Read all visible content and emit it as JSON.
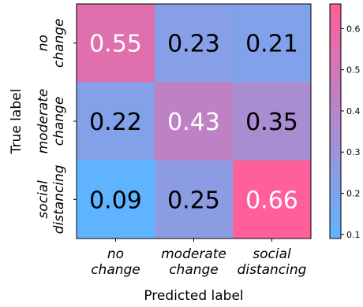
{
  "chart_data": {
    "type": "heatmap",
    "x_categories": [
      "no\nchange",
      "moderate\nchange",
      "social\ndistancing"
    ],
    "y_categories": [
      "no\nchange",
      "moderate\nchange",
      "social\ndistancing"
    ],
    "values": [
      [
        0.55,
        0.23,
        0.21
      ],
      [
        0.22,
        0.43,
        0.35
      ],
      [
        0.09,
        0.25,
        0.66
      ]
    ],
    "cell_labels": [
      [
        "0.55",
        "0.23",
        "0.21"
      ],
      [
        "0.22",
        "0.43",
        "0.35"
      ],
      [
        "0.09",
        "0.25",
        "0.66"
      ]
    ],
    "xlabel": "Predicted label",
    "ylabel": "True label",
    "colorbar": {
      "range": [
        0.09,
        0.66
      ],
      "ticks": [
        0.1,
        0.2,
        0.3,
        0.4,
        0.5,
        0.6
      ],
      "tick_labels": [
        "0.1",
        "0.2",
        "0.3",
        "0.4",
        "0.5",
        "0.6"
      ],
      "color_low": "#5fb4ff",
      "color_high": "#ff5f9a"
    },
    "light_text_color": "#ffffff",
    "dark_text_color": "#000000"
  }
}
